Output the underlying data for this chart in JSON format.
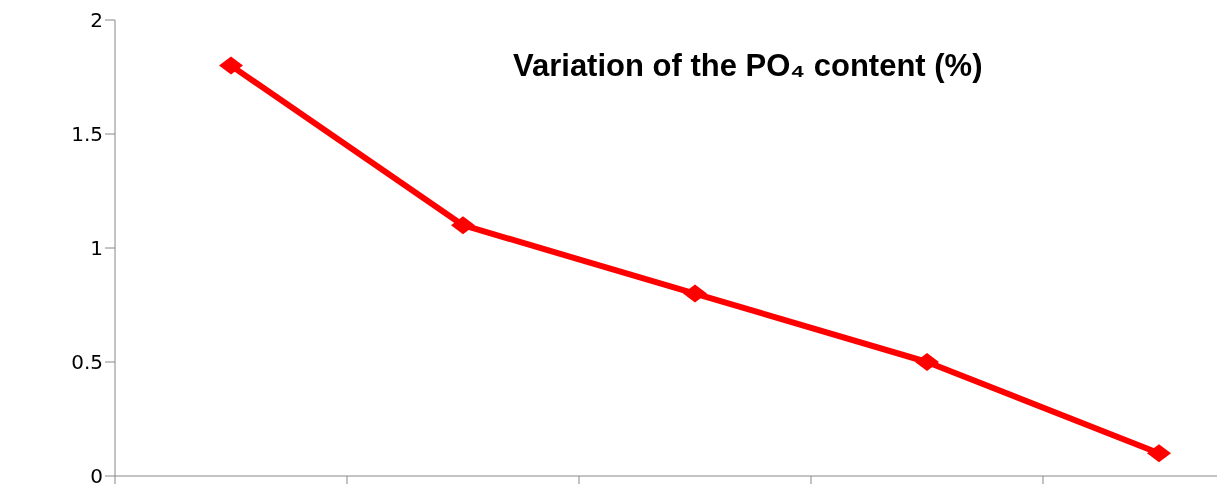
{
  "chart_data": {
    "type": "line",
    "title": "Variation of the PO₄ content (%)",
    "categories": [
      null,
      null,
      null,
      null,
      null
    ],
    "series": [
      {
        "color": "#ff0000",
        "values": [
          1.8,
          1.1,
          0.8,
          0.5,
          0.1
        ]
      }
    ],
    "ylim": [
      0,
      2
    ],
    "yticks": [
      0,
      0.5,
      1,
      1.5,
      2
    ],
    "marker": "diamond",
    "line_style": "solid"
  }
}
